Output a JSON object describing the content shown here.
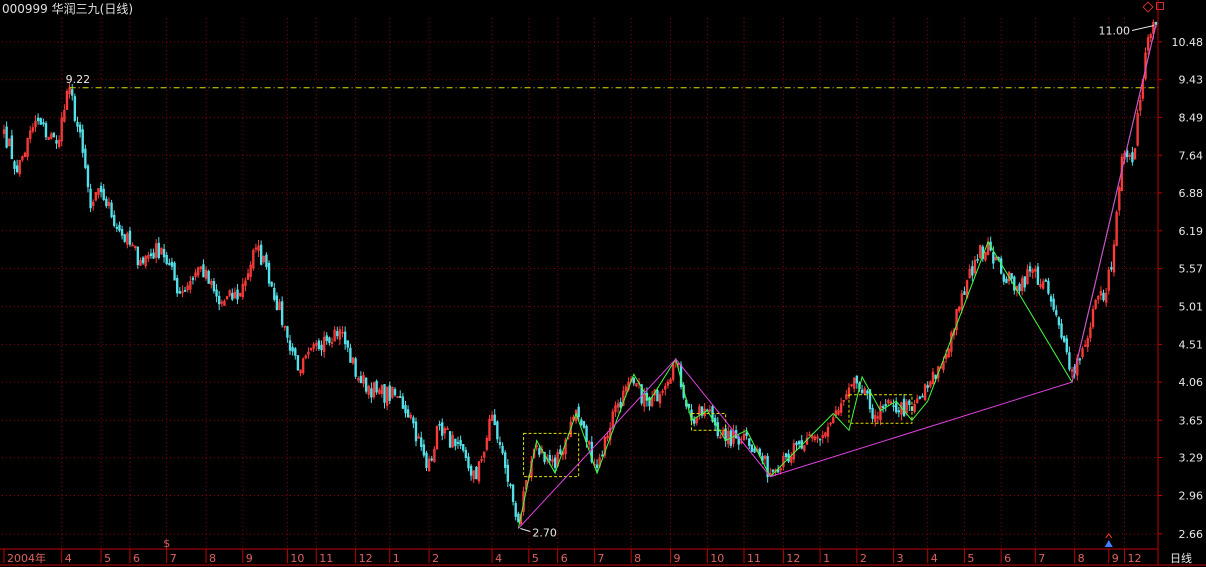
{
  "header": {
    "code": "000999",
    "name": "华润三九(日线)"
  },
  "period_label": "日线",
  "colors": {
    "up": "#ff3c3c",
    "down": "#55e0e8",
    "grid": "#8a0000",
    "axis": "#c00000",
    "hline": "#e0e000",
    "zigzag_major": "#e040e0",
    "zigzag_minor": "#40ff40",
    "boxes": "#e0e000",
    "text": "#e8e8e8",
    "month_text": "#e06060"
  },
  "icons": [
    "diamond-icon",
    "window-icon",
    "sell-marker-icon",
    "buy-marker-icon"
  ],
  "chart_data": {
    "type": "candlestick",
    "title": "000999 华润三九(日线)",
    "y_ticks": [
      10.48,
      9.43,
      8.49,
      7.64,
      6.88,
      6.19,
      5.57,
      5.01,
      4.51,
      4.06,
      3.65,
      3.29,
      2.96,
      2.66
    ],
    "ylim": [
      2.55,
      11.2
    ],
    "y_scale": "log",
    "x_labels": [
      "2004年",
      "4",
      "5",
      "6",
      "7",
      "8",
      "9",
      "10",
      "11",
      "12",
      "1",
      "2",
      "4",
      "5",
      "6",
      "7",
      "8",
      "9",
      "10",
      "11",
      "12",
      "1",
      "2",
      "3",
      "4",
      "5",
      "6",
      "7",
      "8",
      "9",
      "12"
    ],
    "n_bars": 440,
    "x_label_bars": [
      0,
      22,
      37,
      48,
      62,
      77,
      91,
      108,
      119,
      134,
      147,
      162,
      186,
      200,
      211,
      225,
      239,
      254,
      268,
      282,
      297,
      311,
      325,
      339,
      352,
      366,
      380,
      393,
      408,
      421,
      427
    ],
    "price_path": [
      [
        0,
        8.2
      ],
      [
        5,
        7.3
      ],
      [
        12,
        8.4
      ],
      [
        20,
        7.9
      ],
      [
        25,
        9.22
      ],
      [
        30,
        7.7
      ],
      [
        33,
        6.6
      ],
      [
        37,
        6.9
      ],
      [
        44,
        6.2
      ],
      [
        52,
        5.7
      ],
      [
        60,
        5.9
      ],
      [
        67,
        5.2
      ],
      [
        75,
        5.6
      ],
      [
        82,
        5.05
      ],
      [
        90,
        5.2
      ],
      [
        96,
        5.9
      ],
      [
        100,
        5.6
      ],
      [
        108,
        4.6
      ],
      [
        113,
        4.2
      ],
      [
        122,
        4.6
      ],
      [
        128,
        4.7
      ],
      [
        135,
        4.1
      ],
      [
        142,
        3.95
      ],
      [
        150,
        3.9
      ],
      [
        155,
        3.7
      ],
      [
        161,
        3.2
      ],
      [
        166,
        3.6
      ],
      [
        172,
        3.4
      ],
      [
        180,
        3.1
      ],
      [
        186,
        3.7
      ],
      [
        191,
        3.2
      ],
      [
        196,
        2.75
      ],
      [
        203,
        3.4
      ],
      [
        210,
        3.2
      ],
      [
        218,
        3.75
      ],
      [
        226,
        3.2
      ],
      [
        233,
        3.8
      ],
      [
        240,
        4.05
      ],
      [
        246,
        3.8
      ],
      [
        256,
        4.3
      ],
      [
        262,
        3.65
      ],
      [
        268,
        3.75
      ],
      [
        275,
        3.45
      ],
      [
        283,
        3.5
      ],
      [
        292,
        3.15
      ],
      [
        297,
        3.3
      ],
      [
        305,
        3.4
      ],
      [
        312,
        3.5
      ],
      [
        318,
        3.75
      ],
      [
        325,
        4.05
      ],
      [
        332,
        3.7
      ],
      [
        339,
        3.8
      ],
      [
        346,
        3.75
      ],
      [
        352,
        4.0
      ],
      [
        358,
        4.3
      ],
      [
        364,
        5.0
      ],
      [
        370,
        5.7
      ],
      [
        375,
        6.0
      ],
      [
        380,
        5.5
      ],
      [
        386,
        5.3
      ],
      [
        392,
        5.55
      ],
      [
        398,
        5.2
      ],
      [
        403,
        4.6
      ],
      [
        407,
        4.2
      ],
      [
        412,
        4.5
      ],
      [
        416,
        5.1
      ],
      [
        420,
        5.2
      ],
      [
        423,
        5.95
      ],
      [
        426,
        7.6
      ],
      [
        430,
        7.5
      ],
      [
        433,
        8.9
      ],
      [
        436,
        10.6
      ],
      [
        439,
        11.0
      ]
    ],
    "annotations": [
      {
        "text": "9.22",
        "bar": 25,
        "price": 9.22
      },
      {
        "text": "2.70",
        "bar": 196,
        "price": 2.7
      },
      {
        "text": "11.00",
        "bar": 439,
        "price": 11.0
      }
    ],
    "reference_line": {
      "price": 9.22,
      "style": "dash-dot"
    },
    "zigzag_major": [
      [
        196,
        2.7
      ],
      [
        256,
        4.33
      ],
      [
        292,
        3.12
      ],
      [
        407,
        4.06
      ],
      [
        439,
        11.0
      ]
    ],
    "zigzag_minor": [
      [
        196,
        2.7
      ],
      [
        203,
        3.45
      ],
      [
        210,
        3.15
      ],
      [
        218,
        3.72
      ],
      [
        226,
        3.15
      ],
      [
        240,
        4.15
      ],
      [
        246,
        3.85
      ],
      [
        256,
        4.33
      ],
      [
        262,
        3.65
      ],
      [
        268,
        3.75
      ],
      [
        275,
        3.45
      ],
      [
        283,
        3.55
      ],
      [
        292,
        3.12
      ],
      [
        316,
        3.72
      ],
      [
        322,
        3.55
      ],
      [
        327,
        4.12
      ],
      [
        334,
        3.75
      ],
      [
        340,
        3.85
      ],
      [
        346,
        3.65
      ],
      [
        352,
        3.85
      ],
      [
        375,
        6.0
      ],
      [
        407,
        4.06
      ],
      [
        439,
        11.0
      ]
    ],
    "boxes": [
      {
        "bar_from": 198,
        "bar_to": 219,
        "price_low": 3.12,
        "price_high": 3.52
      },
      {
        "bar_from": 262,
        "bar_to": 275,
        "price_low": 3.55,
        "price_high": 3.72
      },
      {
        "bar_from": 322,
        "bar_to": 346,
        "price_low": 3.62,
        "price_high": 3.92
      }
    ],
    "markers": [
      {
        "type": "sell",
        "bar": 62
      },
      {
        "type": "buy",
        "bar": 421
      }
    ]
  }
}
